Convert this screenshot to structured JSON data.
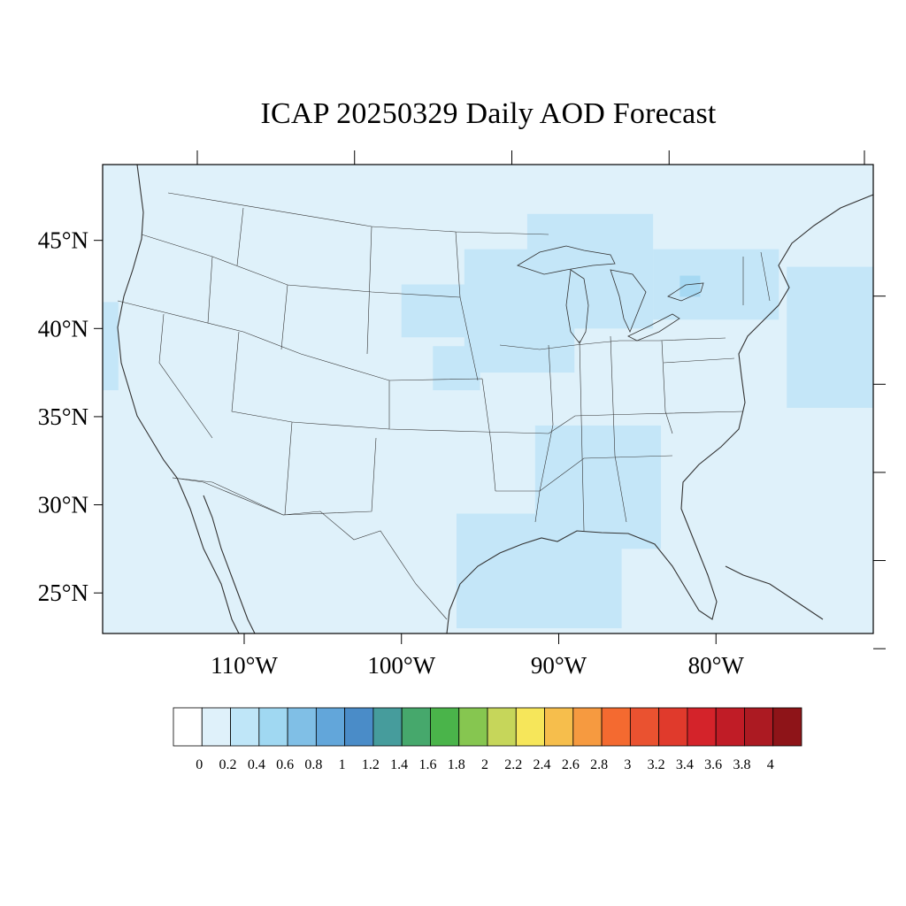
{
  "title": "ICAP 20250329 Daily AOD Forecast",
  "map": {
    "projection": "equirectangular",
    "lon_range": [
      -119,
      -70
    ],
    "lat_range": [
      22.7,
      49.3
    ],
    "land_color": "#dff1fa",
    "water_color": "#dff1fa",
    "lat_ticks": [
      {
        "value": 25,
        "label": "25°N"
      },
      {
        "value": 30,
        "label": "30°N"
      },
      {
        "value": 35,
        "label": "35°N"
      },
      {
        "value": 40,
        "label": "40°N"
      },
      {
        "value": 45,
        "label": "45°N"
      }
    ],
    "lon_ticks": [
      {
        "value": -110,
        "label": "110°W"
      },
      {
        "value": -100,
        "label": "100°W"
      },
      {
        "value": -90,
        "label": "90°W"
      },
      {
        "value": -80,
        "label": "80°W"
      }
    ],
    "aod_regions": [
      {
        "bin": "0.2-0.4",
        "lon": [
          -100,
          -92.5
        ],
        "lat": [
          39.5,
          42.5
        ]
      },
      {
        "bin": "0.2-0.4",
        "lon": [
          -96,
          -89
        ],
        "lat": [
          37.5,
          44.5
        ]
      },
      {
        "bin": "0.2-0.4",
        "lon": [
          -92,
          -84
        ],
        "lat": [
          40,
          46.5
        ]
      },
      {
        "bin": "0.2-0.4",
        "lon": [
          -84,
          -76
        ],
        "lat": [
          40.5,
          44.5
        ]
      },
      {
        "bin": "0.2-0.4",
        "lon": [
          -75.5,
          -70
        ],
        "lat": [
          35.5,
          43.5
        ]
      },
      {
        "bin": "0.2-0.4",
        "lon": [
          -91.5,
          -83.5
        ],
        "lat": [
          27.5,
          34.5
        ]
      },
      {
        "bin": "0.2-0.4",
        "lon": [
          -96.5,
          -86
        ],
        "lat": [
          23,
          29.5
        ]
      },
      {
        "bin": "0.2-0.4",
        "lon": [
          -98,
          -95
        ],
        "lat": [
          36.5,
          39
        ]
      },
      {
        "bin": "0.2-0.4",
        "lon": [
          -119,
          -118
        ],
        "lat": [
          36.5,
          41.5
        ]
      },
      {
        "bin": "0.4-0.6",
        "lon": [
          -82.3,
          -81
        ],
        "lat": [
          41.8,
          43
        ]
      }
    ]
  },
  "colorbar": {
    "colors": [
      "#ffffff",
      "#dff1fa",
      "#bfe6f8",
      "#a0d8f2",
      "#80bfe6",
      "#62a6da",
      "#4a8cc8",
      "#469c9c",
      "#46a86c",
      "#4ab44a",
      "#86c650",
      "#c6d65a",
      "#f6e65a",
      "#f6be4c",
      "#f69a40",
      "#f46a30",
      "#ea5230",
      "#e03a2c",
      "#d4232a",
      "#c01c26",
      "#ac1a22",
      "#8e1418"
    ],
    "labels": [
      "0",
      "0.2",
      "0.4",
      "0.6",
      "0.8",
      "1",
      "1.2",
      "1.4",
      "1.6",
      "1.8",
      "2",
      "2.2",
      "2.4",
      "2.6",
      "2.8",
      "3",
      "3.2",
      "3.4",
      "3.6",
      "3.8",
      "4"
    ]
  }
}
